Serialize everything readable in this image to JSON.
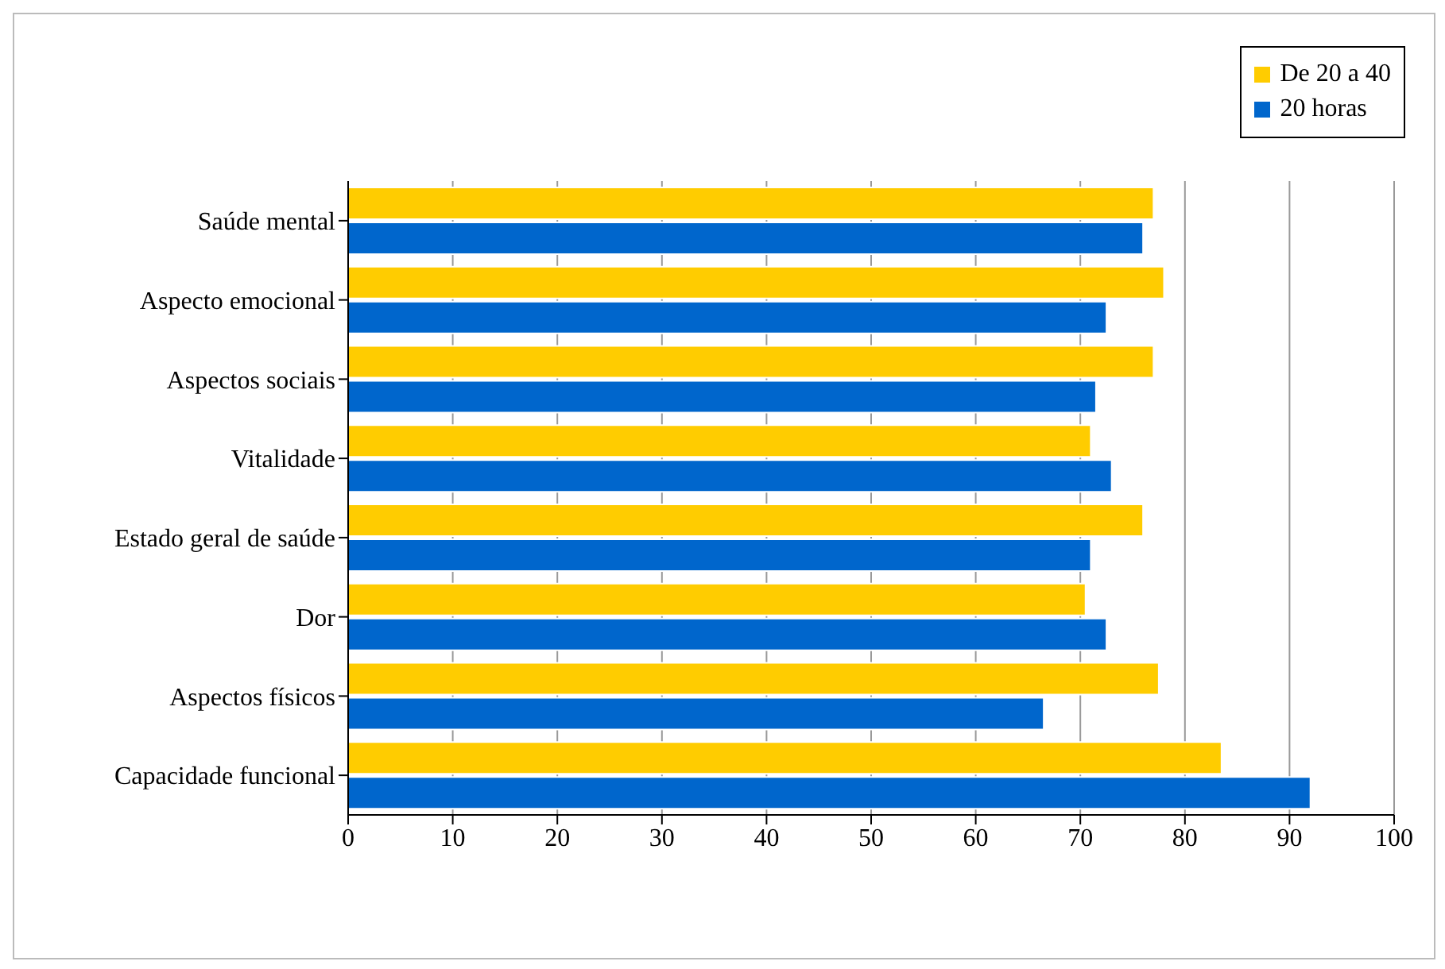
{
  "chart_data": {
    "type": "bar",
    "orientation": "horizontal",
    "categories": [
      "Saúde mental",
      "Aspecto emocional",
      "Aspectos sociais",
      "Vitalidade",
      "Estado geral de saúde",
      "Dor",
      "Aspectos físicos",
      "Capacidade funcional"
    ],
    "series": [
      {
        "name": "De 20 a 40",
        "color": "#ffcc00",
        "values": [
          77,
          78,
          77,
          71,
          76,
          70.5,
          77.5,
          83.5
        ]
      },
      {
        "name": "20 horas",
        "color": "#0066cc",
        "values": [
          76,
          72.5,
          71.5,
          73,
          71,
          72.5,
          66.5,
          92
        ]
      }
    ],
    "xlim": [
      0,
      100
    ],
    "xticks": [
      0,
      10,
      20,
      30,
      40,
      50,
      60,
      70,
      80,
      90,
      100
    ],
    "grid": "x",
    "legend": "top right"
  }
}
